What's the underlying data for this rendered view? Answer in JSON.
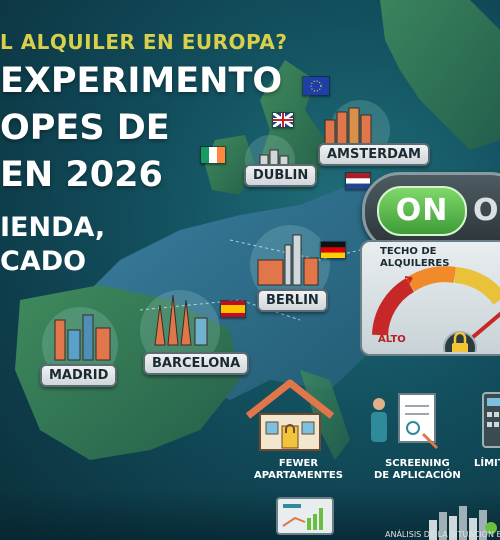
{
  "headline": {
    "kicker": "L ALQUILER EN EUROPA?",
    "title_line1": "EXPERIMENTO",
    "title_line2": "OPES DE",
    "title_line3": "EN 2026",
    "subtitle_line1": "IENDA,",
    "subtitle_line2": "CADO"
  },
  "cities": {
    "amsterdam": "AMSTERDAM",
    "dublin": "DUBLIN",
    "berlin": "BERLIN",
    "madrid": "MADRID",
    "barcelona": "BARCELONA"
  },
  "toggle": {
    "on_label": "ON",
    "off_label": "O"
  },
  "gauge": {
    "title_line1": "TECHO DE",
    "title_line2": "ALQUILERES",
    "low_end_label": "ALTO"
  },
  "features": [
    {
      "line1": "FEWER",
      "line2": "APARTAMENTES",
      "icon": "house-lock-icon"
    },
    {
      "line1": "SCREENING",
      "line2": "DE APLICACIÓN",
      "icon": "screening-icon"
    },
    {
      "line1": "LÍMIT",
      "line2": "",
      "icon": "calculator-icon"
    }
  ],
  "footer": {
    "analysis_text": "ANÁLISIS DE LA SITUACIÓN EN EURO"
  },
  "colors": {
    "kicker": "#d8d04a",
    "toggle_on": "#4caf3f",
    "gauge_red": "#c62828",
    "gauge_green": "#6cbf3e",
    "sea": "#124d5c",
    "land": "#2f6f4f"
  }
}
